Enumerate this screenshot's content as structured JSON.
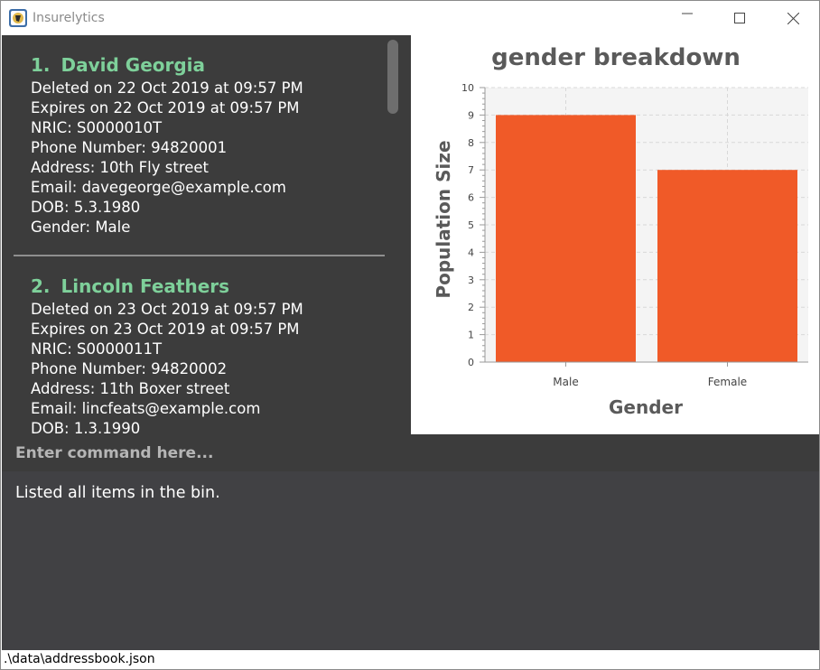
{
  "window": {
    "title": "Insurelytics",
    "icon": "app-logo-icon",
    "controls": [
      "minimize-icon",
      "maximize-icon",
      "close-icon"
    ]
  },
  "person_list": [
    {
      "index": "1.",
      "name": "David Georgia",
      "details": [
        "Deleted on 22 Oct 2019 at 09:57 PM",
        "Expires on 22 Oct 2019 at 09:57 PM",
        "NRIC: S0000010T",
        "Phone Number: 94820001",
        "Address: 10th Fly street",
        "Email: davegeorge@example.com",
        "DOB: 5.3.1980",
        "Gender: Male"
      ]
    },
    {
      "index": "2.",
      "name": "Lincoln Feathers",
      "details": [
        "Deleted on 23 Oct 2019 at 09:57 PM",
        "Expires on 23 Oct 2019 at 09:57 PM",
        "NRIC: S0000011T",
        "Phone Number: 94820002",
        "Address: 11th Boxer street",
        "Email: lincfeats@example.com",
        "DOB: 1.3.1990"
      ]
    }
  ],
  "chart_data": {
    "type": "bar",
    "title": "gender breakdown",
    "xlabel": "Gender",
    "ylabel": "Population Size",
    "categories": [
      "Male",
      "Female"
    ],
    "values": [
      9,
      7
    ],
    "ylim": [
      0,
      10
    ],
    "yticks": [
      "0",
      "1",
      "2",
      "3",
      "4",
      "5",
      "6",
      "7",
      "8",
      "9",
      "10"
    ],
    "grid": true,
    "legend": "none",
    "bar_color": "#f05a28"
  },
  "command": {
    "placeholder": "Enter command here..."
  },
  "result": {
    "text": "Listed all items in the bin."
  },
  "status_bar": {
    "path": ".\\data\\addressbook.json"
  },
  "colors": {
    "panel_background": "#3c3c3c",
    "name_accent": "#7ed09a",
    "result_background": "#414144"
  }
}
